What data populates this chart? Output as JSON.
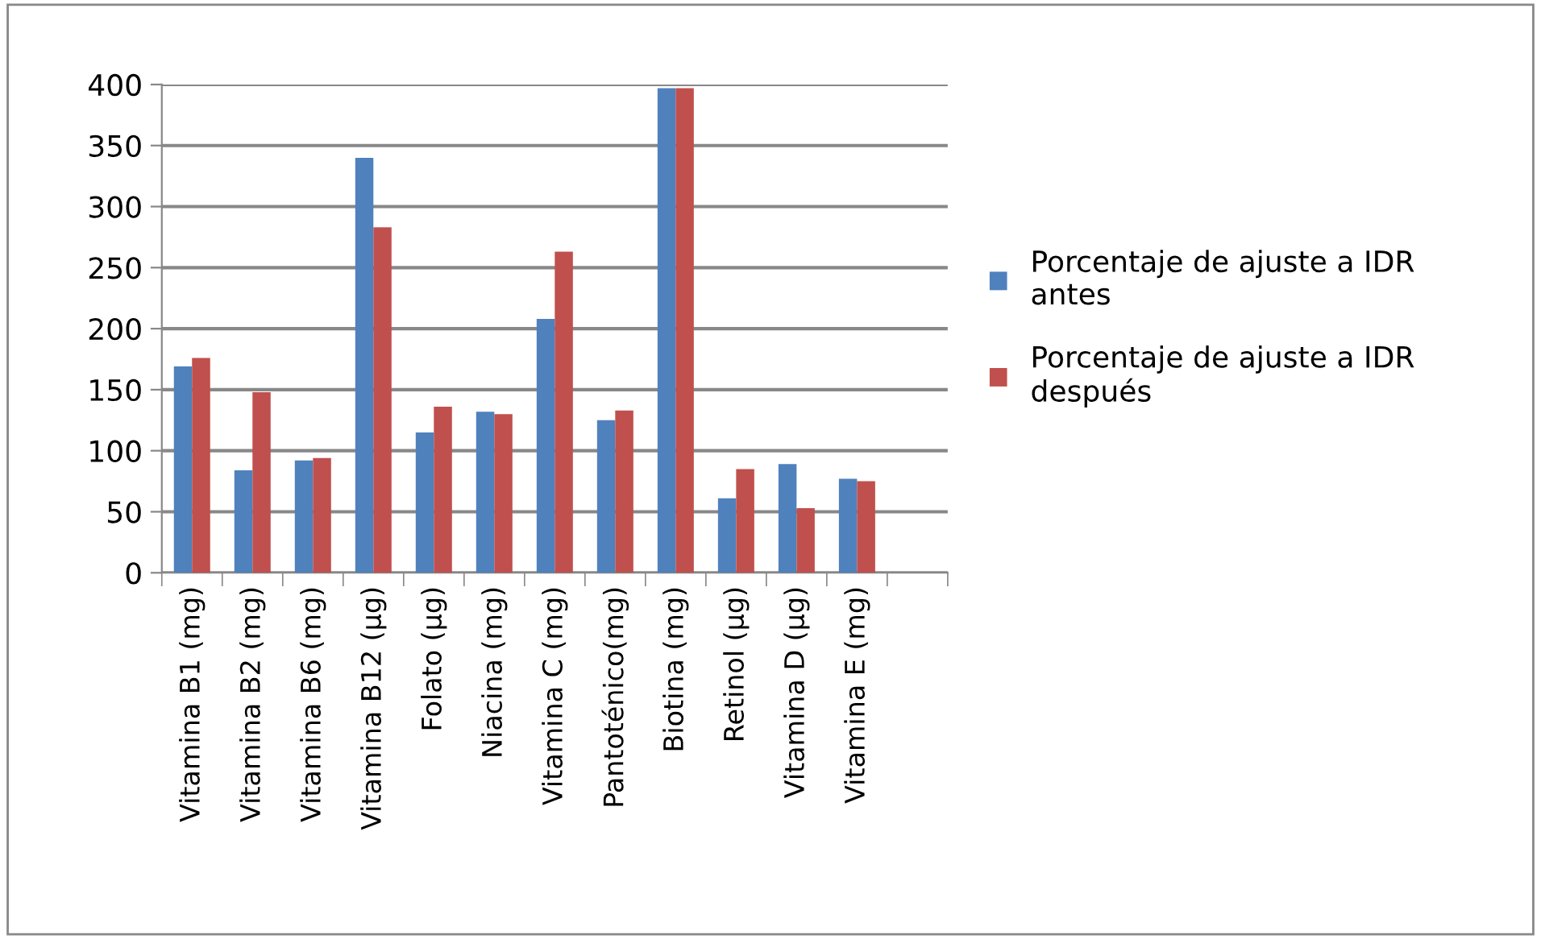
{
  "chart_data": {
    "type": "bar",
    "categories": [
      "Vitamina B1 (mg)",
      "Vitamina B2 (mg)",
      "Vitamina B6 (mg)",
      "Vitamina B12 (µg)",
      "Folato (µg)",
      "Niacina (mg)",
      "Vitamina C (mg)",
      "Pantoténico(mg)",
      "Biotina (mg)",
      "Retinol (µg)",
      "Vitamina D (µg)",
      "Vitamina E (mg)"
    ],
    "series": [
      {
        "name": "Porcentaje de ajuste a IDR antes",
        "color": "#4f81bd",
        "values": [
          169,
          84,
          92,
          340,
          115,
          132,
          208,
          125,
          397,
          61,
          89,
          77
        ]
      },
      {
        "name": "Porcentaje de ajuste a IDR después",
        "color": "#c0504d",
        "values": [
          176,
          148,
          94,
          283,
          136,
          130,
          263,
          133,
          397,
          85,
          53,
          75
        ]
      }
    ],
    "ylim": [
      0,
      400
    ],
    "yticks": [
      0,
      50,
      100,
      150,
      200,
      250,
      300,
      350,
      400
    ],
    "grid": "y",
    "legend": "right"
  }
}
